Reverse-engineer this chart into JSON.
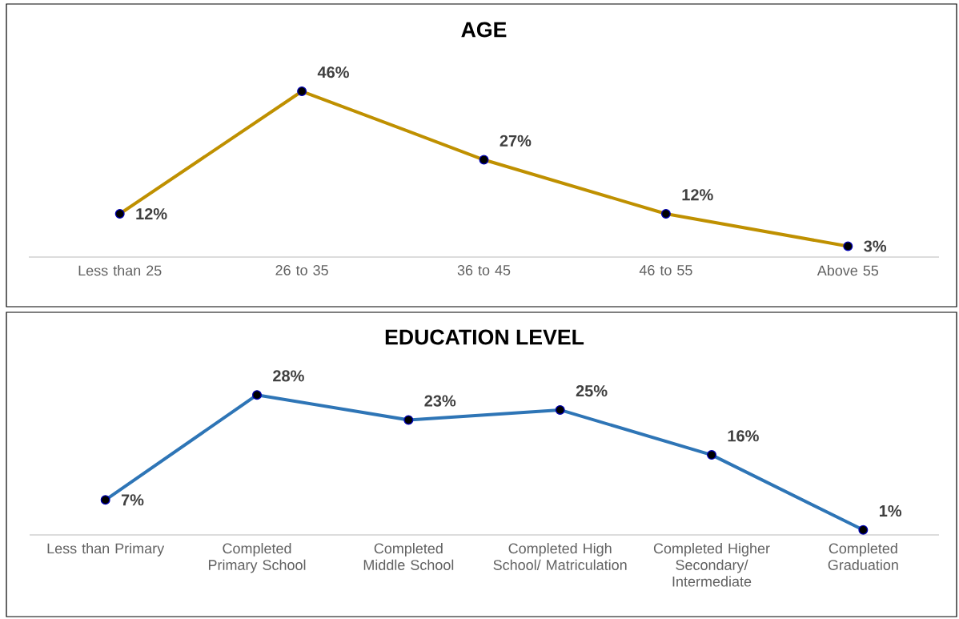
{
  "chart_data": [
    {
      "type": "line",
      "title": "AGE",
      "categories": [
        "Less than 25",
        "26 to 35",
        "36 to 45",
        "46 to 55",
        "Above 55"
      ],
      "values": [
        12,
        46,
        27,
        12,
        3
      ],
      "value_labels": [
        "12%",
        "46%",
        "27%",
        "12%",
        "3%"
      ],
      "color": "#bf9000",
      "marker": "circle"
    },
    {
      "type": "line",
      "title": "EDUCATION LEVEL",
      "categories": [
        "Less than Primary",
        "Completed Primary School",
        "Completed Middle School",
        "Completed High School/ Matriculation",
        "Completed Higher Secondary/ Intermediate",
        "Completed Graduation"
      ],
      "values": [
        7,
        28,
        23,
        25,
        16,
        1
      ],
      "value_labels": [
        "7%",
        "28%",
        "23%",
        "25%",
        "16%",
        "1%"
      ],
      "color": "#2e75b6",
      "marker": "circle"
    }
  ]
}
